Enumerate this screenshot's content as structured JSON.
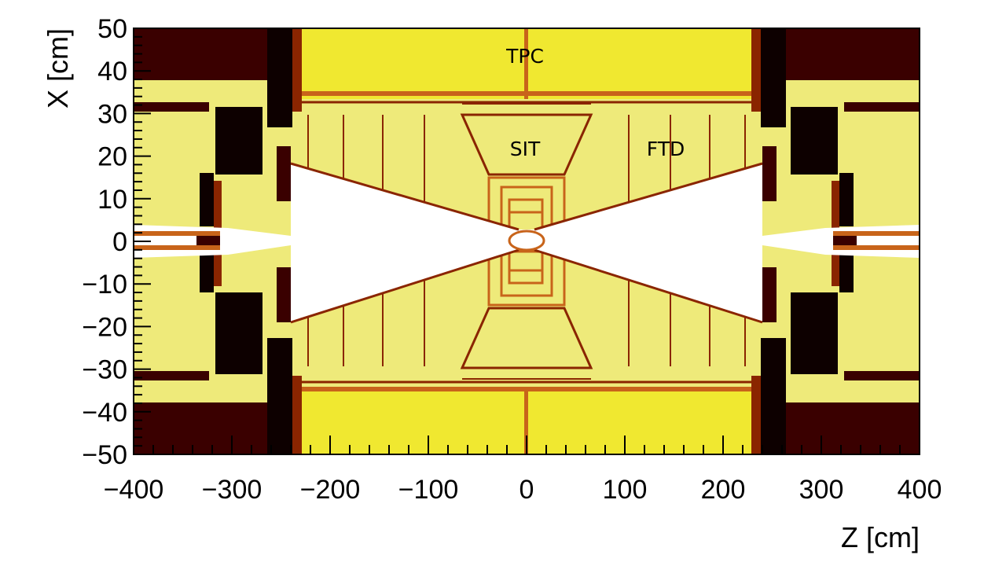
{
  "axes": {
    "x_title": "Z [cm]",
    "y_title": "X [cm]",
    "x_range": [
      -400,
      400
    ],
    "y_range": [
      -50,
      50
    ],
    "x_ticks": [
      "−400",
      "−300",
      "−200",
      "−100",
      "0",
      "100",
      "200",
      "300",
      "400"
    ],
    "x_tick_values": [
      -400,
      -300,
      -200,
      -100,
      0,
      100,
      200,
      300,
      400
    ],
    "y_ticks": [
      "50",
      "40",
      "30",
      "20",
      "10",
      "0",
      "−10",
      "−20",
      "−30",
      "−40",
      "−50"
    ],
    "y_tick_values": [
      50,
      40,
      30,
      20,
      10,
      0,
      -10,
      -20,
      -30,
      -40,
      -50
    ]
  },
  "labels": {
    "tpc": "TPC",
    "sit": "SIT",
    "ftd": "FTD"
  },
  "colors": {
    "light_yellow": "#eeea7a",
    "bright_yellow": "#f0e830",
    "black": "#0d0000",
    "dark_brown": "#3a0000",
    "brown": "#8a2500",
    "orange": "#c8641a",
    "white": "#ffffff"
  }
}
